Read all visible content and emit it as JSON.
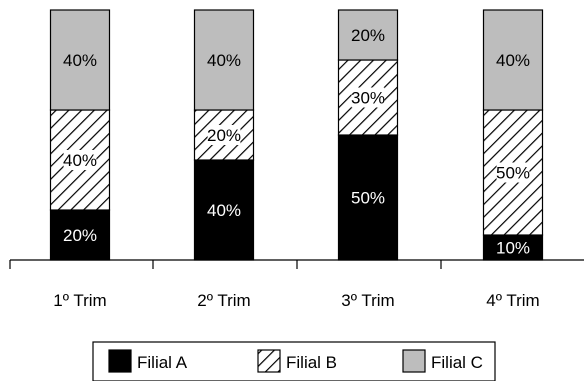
{
  "chart_data": {
    "type": "bar",
    "stacked": true,
    "categories": [
      "1º Trim",
      "2º Trim",
      "3º Trim",
      "4º Trim"
    ],
    "series": [
      {
        "name": "Filial A",
        "values": [
          20,
          40,
          50,
          10
        ],
        "labels": [
          "20%",
          "40%",
          "50%",
          "10%"
        ],
        "fill": "#000000",
        "label_color": "#ffffff",
        "pattern": "solid"
      },
      {
        "name": "Filial B",
        "values": [
          40,
          20,
          30,
          50
        ],
        "labels": [
          "40%",
          "20%",
          "30%",
          "50%"
        ],
        "fill": "#ffffff",
        "label_color": "#000000",
        "pattern": "diagonal-hatch"
      },
      {
        "name": "Filial C",
        "values": [
          40,
          40,
          20,
          40
        ],
        "labels": [
          "40%",
          "40%",
          "20%",
          "40%"
        ],
        "fill": "#bdbdbd",
        "label_color": "#000000",
        "pattern": "solid"
      }
    ],
    "ylim": [
      0,
      100
    ],
    "grid": false,
    "legend_position": "bottom"
  }
}
